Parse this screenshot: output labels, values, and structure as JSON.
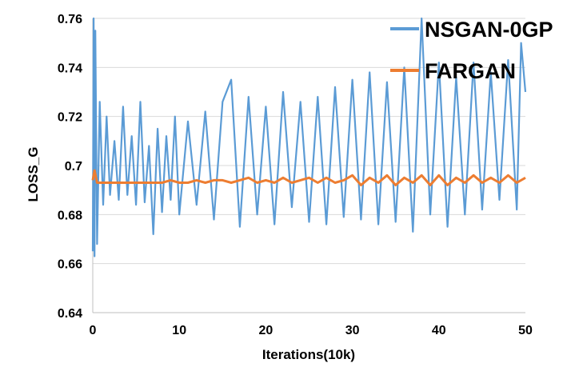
{
  "chart_data": {
    "type": "line",
    "title": "",
    "xlabel": "Iterations(10k)",
    "ylabel": "LOSS_G",
    "xlim": [
      0,
      50
    ],
    "ylim": [
      0.64,
      0.76
    ],
    "x_ticks": [
      0,
      10,
      20,
      30,
      40,
      50
    ],
    "x_tick_labels": [
      "0",
      "10",
      "20",
      "30",
      "40",
      "50"
    ],
    "y_ticks": [
      0.64,
      0.66,
      0.68,
      0.7,
      0.72,
      0.74,
      0.76
    ],
    "y_tick_labels": [
      "0.64",
      "0.66",
      "0.68",
      "0.7",
      "0.72",
      "0.74",
      "0.76"
    ],
    "grid": "horizontal",
    "legend_position": "top-right",
    "series": [
      {
        "name": "NSGAN-0GP",
        "color": "#5B9BD5",
        "x": [
          0,
          0.1,
          0.2,
          0.3,
          0.5,
          0.8,
          1.2,
          1.6,
          2,
          2.5,
          3,
          3.5,
          4,
          4.5,
          5,
          5.5,
          6,
          6.5,
          7,
          7.5,
          8,
          8.5,
          9,
          9.5,
          10,
          11,
          12,
          13,
          14,
          15,
          16,
          17,
          18,
          19,
          20,
          21,
          22,
          23,
          24,
          25,
          26,
          27,
          28,
          29,
          30,
          31,
          32,
          33,
          34,
          35,
          36,
          37,
          38,
          39,
          40,
          41,
          42,
          43,
          44,
          45,
          46,
          47,
          48,
          49,
          49.5,
          50
        ],
        "y": [
          0.665,
          0.76,
          0.663,
          0.755,
          0.668,
          0.726,
          0.684,
          0.72,
          0.688,
          0.71,
          0.686,
          0.724,
          0.688,
          0.712,
          0.684,
          0.726,
          0.685,
          0.708,
          0.672,
          0.715,
          0.681,
          0.712,
          0.686,
          0.72,
          0.68,
          0.718,
          0.684,
          0.722,
          0.678,
          0.726,
          0.735,
          0.675,
          0.728,
          0.68,
          0.724,
          0.676,
          0.73,
          0.683,
          0.726,
          0.677,
          0.728,
          0.676,
          0.732,
          0.679,
          0.735,
          0.678,
          0.738,
          0.676,
          0.734,
          0.677,
          0.74,
          0.673,
          0.76,
          0.68,
          0.742,
          0.675,
          0.736,
          0.68,
          0.742,
          0.682,
          0.738,
          0.686,
          0.743,
          0.682,
          0.75,
          0.73
        ]
      },
      {
        "name": "FARGAN",
        "color": "#ED7D31",
        "x": [
          0,
          0.2,
          0.5,
          1,
          2,
          3,
          4,
          5,
          6,
          7,
          8,
          9,
          10,
          11,
          12,
          13,
          14,
          15,
          16,
          17,
          18,
          19,
          20,
          21,
          22,
          23,
          24,
          25,
          26,
          27,
          28,
          29,
          30,
          31,
          32,
          33,
          34,
          35,
          36,
          37,
          38,
          39,
          40,
          41,
          42,
          43,
          44,
          45,
          46,
          47,
          48,
          49,
          50
        ],
        "y": [
          0.694,
          0.698,
          0.693,
          0.693,
          0.693,
          0.693,
          0.693,
          0.693,
          0.693,
          0.693,
          0.693,
          0.694,
          0.693,
          0.693,
          0.694,
          0.693,
          0.694,
          0.694,
          0.693,
          0.694,
          0.695,
          0.693,
          0.694,
          0.693,
          0.695,
          0.693,
          0.694,
          0.695,
          0.693,
          0.695,
          0.693,
          0.694,
          0.696,
          0.692,
          0.695,
          0.693,
          0.696,
          0.692,
          0.695,
          0.693,
          0.696,
          0.692,
          0.696,
          0.692,
          0.695,
          0.693,
          0.696,
          0.693,
          0.695,
          0.693,
          0.696,
          0.693,
          0.695
        ]
      }
    ]
  }
}
